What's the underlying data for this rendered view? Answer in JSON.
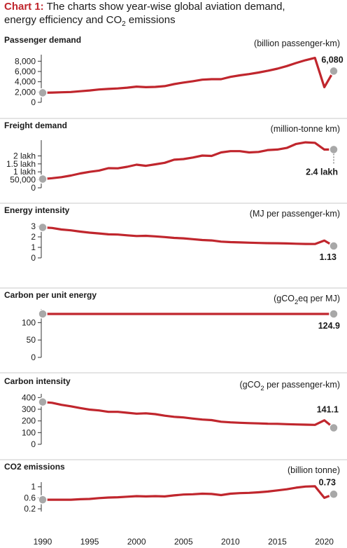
{
  "title": {
    "label": "Chart 1:",
    "line1": "The charts show year-wise global aviation demand,",
    "line2_pre": "energy efficiency and CO",
    "line2_sub": "2",
    "line2_post": " emissions"
  },
  "colors": {
    "line": "#c0262d",
    "marker": "#a8a8a8",
    "axis": "#333333",
    "divider": "#c8c8c8"
  },
  "chart_data": [
    {
      "type": "line",
      "title": "Passenger demand",
      "unit": "(billion passenger-km)",
      "x": [
        1990,
        1991,
        1992,
        1993,
        1994,
        1995,
        1996,
        1997,
        1998,
        1999,
        2000,
        2001,
        2002,
        2003,
        2004,
        2005,
        2006,
        2007,
        2008,
        2009,
        2010,
        2011,
        2012,
        2013,
        2014,
        2015,
        2016,
        2017,
        2018,
        2019,
        2020,
        2021
      ],
      "values": [
        1850,
        1900,
        1950,
        2000,
        2150,
        2300,
        2500,
        2600,
        2700,
        2850,
        3050,
        2950,
        3000,
        3150,
        3550,
        3850,
        4100,
        4400,
        4500,
        4500,
        4950,
        5250,
        5500,
        5800,
        6150,
        6550,
        7050,
        7650,
        8200,
        8650,
        2950,
        6080
      ],
      "yticks": [
        0,
        2000,
        4000,
        6000,
        8000
      ],
      "ytick_labels": [
        "0",
        "2,000",
        "4,000",
        "6,000",
        "8,000"
      ],
      "ylim": [
        0,
        9000
      ],
      "end_label": "6,080"
    },
    {
      "type": "line",
      "title": "Freight demand",
      "unit": "(million-tonne km)",
      "x": [
        1990,
        1991,
        1992,
        1993,
        1994,
        1995,
        1996,
        1997,
        1998,
        1999,
        2000,
        2001,
        2002,
        2003,
        2004,
        2005,
        2006,
        2007,
        2008,
        2009,
        2010,
        2011,
        2012,
        2013,
        2014,
        2015,
        2016,
        2017,
        2018,
        2019,
        2020,
        2021
      ],
      "values": [
        55000,
        60000,
        67000,
        77000,
        90000,
        100000,
        108000,
        123000,
        122000,
        132000,
        145000,
        138000,
        147000,
        157000,
        176000,
        180000,
        190000,
        202000,
        200000,
        222000,
        230000,
        230000,
        222000,
        225000,
        237000,
        240000,
        250000,
        275000,
        285000,
        282000,
        240000,
        240000
      ],
      "yticks": [
        0,
        50000,
        100000,
        150000,
        200000
      ],
      "ytick_labels": [
        "0",
        "50,000",
        "1 lakh",
        "1.5 lakh",
        "2 lakh"
      ],
      "ylim": [
        0,
        290000
      ],
      "end_label": "2.4 lakh"
    },
    {
      "type": "line",
      "title": "Energy intensity",
      "unit": "(MJ per passenger-km)",
      "x": [
        1990,
        1991,
        1992,
        1993,
        1994,
        1995,
        1996,
        1997,
        1998,
        1999,
        2000,
        2001,
        2002,
        2003,
        2004,
        2005,
        2006,
        2007,
        2008,
        2009,
        2010,
        2011,
        2012,
        2013,
        2014,
        2015,
        2016,
        2017,
        2018,
        2019,
        2020,
        2021
      ],
      "values": [
        2.9,
        2.85,
        2.7,
        2.62,
        2.5,
        2.4,
        2.33,
        2.24,
        2.22,
        2.15,
        2.08,
        2.1,
        2.05,
        1.98,
        1.9,
        1.86,
        1.78,
        1.7,
        1.66,
        1.55,
        1.5,
        1.47,
        1.45,
        1.42,
        1.4,
        1.39,
        1.37,
        1.35,
        1.33,
        1.32,
        1.65,
        1.13
      ],
      "yticks": [
        0,
        1,
        2,
        3
      ],
      "ytick_labels": [
        "0",
        "1",
        "2",
        "3"
      ],
      "ylim": [
        0,
        3.2
      ],
      "end_label": "1.13"
    },
    {
      "type": "line",
      "title": "Carbon per unit energy",
      "unit_pre": "(gCO",
      "unit_sub": "2",
      "unit_post": "eq per MJ)",
      "x": [
        1990,
        1991,
        1992,
        1993,
        1994,
        1995,
        1996,
        1997,
        1998,
        1999,
        2000,
        2001,
        2002,
        2003,
        2004,
        2005,
        2006,
        2007,
        2008,
        2009,
        2010,
        2011,
        2012,
        2013,
        2014,
        2015,
        2016,
        2017,
        2018,
        2019,
        2020,
        2021
      ],
      "values": [
        124.9,
        124.9,
        124.9,
        124.9,
        124.9,
        124.9,
        124.9,
        124.9,
        124.9,
        124.9,
        124.9,
        124.9,
        124.9,
        124.9,
        124.9,
        124.9,
        124.9,
        124.9,
        124.9,
        124.9,
        124.9,
        124.9,
        124.9,
        124.9,
        124.9,
        124.9,
        124.9,
        124.9,
        124.9,
        124.9,
        124.9,
        124.9
      ],
      "yticks": [
        0,
        50,
        100
      ],
      "ytick_labels": [
        "0",
        "50",
        "100"
      ],
      "ylim": [
        0,
        135
      ],
      "end_label": "124.9"
    },
    {
      "type": "line",
      "title": "Carbon intensity",
      "unit_pre": "(gCO",
      "unit_sub": "2",
      "unit_post": " per passenger-km)",
      "x": [
        1990,
        1991,
        1992,
        1993,
        1994,
        1995,
        1996,
        1997,
        1998,
        1999,
        2000,
        2001,
        2002,
        2003,
        2004,
        2005,
        2006,
        2007,
        2008,
        2009,
        2010,
        2011,
        2012,
        2013,
        2014,
        2015,
        2016,
        2017,
        2018,
        2019,
        2020,
        2021
      ],
      "values": [
        362,
        355,
        338,
        325,
        310,
        297,
        290,
        278,
        278,
        270,
        262,
        265,
        258,
        245,
        235,
        230,
        220,
        212,
        207,
        193,
        188,
        184,
        181,
        179,
        176,
        175,
        172,
        170,
        168,
        166,
        205,
        141.1
      ],
      "yticks": [
        0,
        100,
        200,
        300,
        400
      ],
      "ytick_labels": [
        "0",
        "100",
        "200",
        "300",
        "400"
      ],
      "ylim": [
        0,
        420
      ],
      "end_label": "141.1"
    },
    {
      "type": "line",
      "title": "CO2 emissions",
      "unit": "(billion tonne)",
      "x": [
        1990,
        1991,
        1992,
        1993,
        1994,
        1995,
        1996,
        1997,
        1998,
        1999,
        2000,
        2001,
        2002,
        2003,
        2004,
        2005,
        2006,
        2007,
        2008,
        2009,
        2010,
        2011,
        2012,
        2013,
        2014,
        2015,
        2016,
        2017,
        2018,
        2019,
        2020,
        2021
      ],
      "values": [
        0.53,
        0.53,
        0.53,
        0.53,
        0.55,
        0.56,
        0.59,
        0.61,
        0.62,
        0.64,
        0.66,
        0.65,
        0.66,
        0.65,
        0.69,
        0.72,
        0.73,
        0.75,
        0.74,
        0.7,
        0.75,
        0.77,
        0.78,
        0.8,
        0.83,
        0.87,
        0.91,
        0.97,
        1.01,
        1.02,
        0.6,
        0.73
      ],
      "yticks": [
        0.2,
        0.6,
        1
      ],
      "ytick_labels": [
        "0.2",
        "0.6",
        "1"
      ],
      "ylim": [
        0.1,
        1.12
      ],
      "end_label": "0.73",
      "xticks": [
        1990,
        1995,
        2000,
        2005,
        2010,
        2015,
        2020
      ],
      "xtick_labels": [
        "1990",
        "1995",
        "2000",
        "2005",
        "2010",
        "2015",
        "2020"
      ]
    }
  ]
}
